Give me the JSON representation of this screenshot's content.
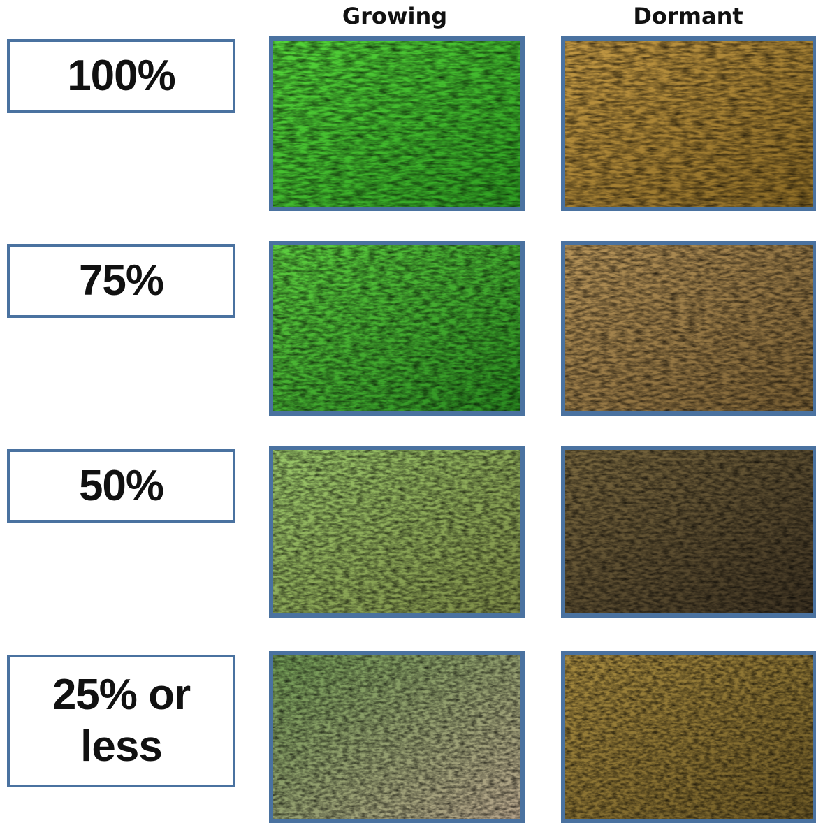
{
  "columns": [
    "Growing",
    "Dormant"
  ],
  "rows": [
    {
      "label": "100%"
    },
    {
      "label": "75%"
    },
    {
      "label": "50%"
    },
    {
      "label": "25% or less"
    }
  ]
}
